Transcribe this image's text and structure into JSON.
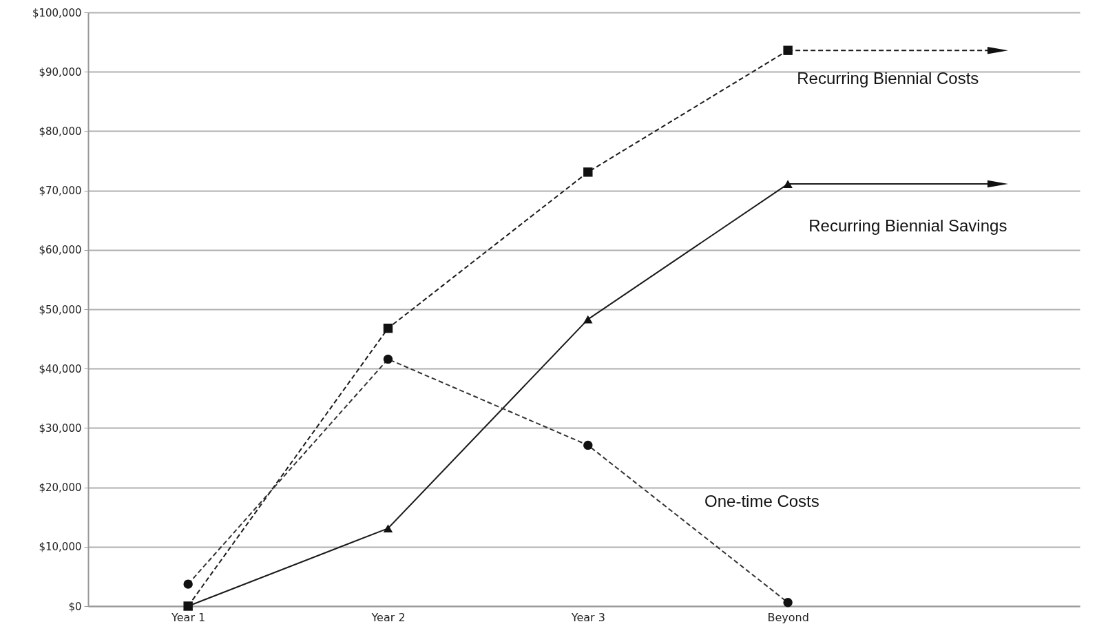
{
  "chart_data": {
    "type": "line",
    "categories": [
      "Year 1",
      "Year 2",
      "Year 3",
      "Beyond"
    ],
    "series": [
      {
        "name": "Recurring Biennial Costs",
        "color": "#1a1a1a",
        "marker": "square",
        "line_style": "dashed",
        "values": [
          0,
          46800,
          73100,
          93600
        ]
      },
      {
        "name": "Recurring Biennial Savings",
        "color": "#1a1a1a",
        "marker": "triangle",
        "line_style": "solid",
        "values": [
          0,
          13100,
          48300,
          71100
        ]
      },
      {
        "name": "One-time Costs",
        "color": "#333333",
        "marker": "circle",
        "line_style": "dashed",
        "values": [
          3700,
          41600,
          27100,
          600
        ]
      }
    ],
    "ylim": [
      0,
      100000
    ],
    "yticks": [
      {
        "value": 0,
        "label": "$0"
      },
      {
        "value": 10000,
        "label": "$10,000"
      },
      {
        "value": 20000,
        "label": "$20,000"
      },
      {
        "value": 30000,
        "label": "$30,000"
      },
      {
        "value": 40000,
        "label": "$40,000"
      },
      {
        "value": 50000,
        "label": "$50,000"
      },
      {
        "value": 60000,
        "label": "$60,000"
      },
      {
        "value": 70000,
        "label": "$70,000"
      },
      {
        "value": 80000,
        "label": "$80,000"
      },
      {
        "value": 90000,
        "label": "$90,000"
      },
      {
        "value": 100000,
        "label": "$100,000"
      }
    ],
    "grid": "y"
  }
}
